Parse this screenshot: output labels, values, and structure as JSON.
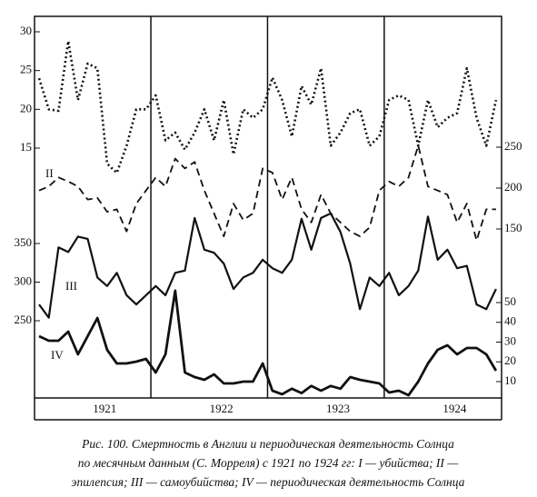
{
  "chart_data": {
    "type": "line",
    "categories": [
      null,
      null,
      null,
      null,
      null,
      null,
      "1921",
      null,
      null,
      null,
      null,
      null,
      null,
      null,
      null,
      null,
      null,
      null,
      "1922",
      null,
      null,
      null,
      null,
      null,
      null,
      null,
      null,
      null,
      null,
      null,
      "1923",
      null,
      null,
      null,
      null,
      null,
      null,
      null,
      null,
      null,
      null,
      null,
      "1924",
      null,
      null,
      null,
      null,
      null
    ],
    "series": [
      {
        "color": "#111",
        "style": "dotted",
        "side": "left",
        "ylim": [
          15,
          30
        ],
        "yticks": [
          15,
          20,
          25,
          30
        ],
        "values": [
          24,
          20,
          19.8,
          28.8,
          21.2,
          25.9,
          25.3,
          13,
          11.8,
          15.3,
          20,
          20,
          21.8,
          16,
          17,
          14.8,
          17,
          20,
          16,
          21.2,
          14.2,
          20,
          18.9,
          20,
          24.1,
          21.2,
          16.5,
          23,
          20.6,
          25.3,
          15.3,
          17,
          19.5,
          20,
          15.3,
          16.5,
          21.2,
          21.8,
          21.2,
          15.3,
          21.2,
          17.7,
          18.9,
          19.5,
          25.3,
          18.9,
          15.3,
          21.2
        ]
      },
      {
        "name": "II",
        "color": "#111",
        "style": "dashed",
        "side": "right",
        "ylim": [
          150,
          250
        ],
        "yticks": [
          150,
          200,
          250
        ],
        "values": [
          197,
          202,
          213,
          208,
          202,
          186,
          188,
          171,
          174,
          147,
          181,
          197,
          213,
          202,
          236,
          224,
          232,
          197,
          169,
          141,
          181,
          161,
          169,
          224,
          219,
          186,
          213,
          174,
          158,
          192,
          169,
          158,
          147,
          141,
          152,
          197,
          208,
          202,
          213,
          252,
          202,
          197,
          192,
          158,
          181,
          136,
          174,
          174
        ]
      },
      {
        "name": "III",
        "color": "#111",
        "style": "solid",
        "side": "left",
        "ylim": [
          250,
          350
        ],
        "yticks": [
          250,
          300,
          350
        ],
        "values": [
          271,
          254,
          345,
          339,
          359,
          356,
          306,
          295,
          312,
          283,
          271,
          283,
          295,
          283,
          312,
          315,
          383,
          342,
          338,
          324,
          291,
          306,
          312,
          329,
          318,
          312,
          329,
          382,
          342,
          383,
          389,
          365,
          324,
          265,
          306,
          295,
          312,
          283,
          295,
          315,
          385,
          329,
          342,
          318,
          321,
          271,
          265,
          291
        ]
      },
      {
        "name": "IV",
        "color": "#111",
        "style": "heavy",
        "side": "right",
        "ylim": [
          10,
          50
        ],
        "yticks": [
          10,
          20,
          30,
          40,
          50
        ],
        "values": [
          33,
          30.7,
          30.7,
          35.3,
          23.8,
          33,
          42.2,
          26.1,
          19.2,
          19.2,
          20.1,
          21.5,
          14.6,
          23.8,
          56,
          14.6,
          12.3,
          10.9,
          13.7,
          9.1,
          9.1,
          10,
          10,
          19.2,
          5.4,
          3.6,
          6.4,
          4.2,
          7.8,
          5.4,
          7.8,
          6.4,
          12.3,
          10.9,
          10,
          9.1,
          4.5,
          5.4,
          3.1,
          10,
          19.2,
          26.1,
          28.4,
          23.8,
          27,
          27,
          23.8,
          15.5
        ]
      }
    ]
  },
  "caption": [
    "Рис. 100. Смертность в Англии и периодическая деятельность Солнца",
    "по месячным данным (С. Морреля) с 1921 по 1924 гг: I — убийства; II —",
    "эпилепсия; III — самоубийства; IV — периодическая деятельность Солнца"
  ]
}
